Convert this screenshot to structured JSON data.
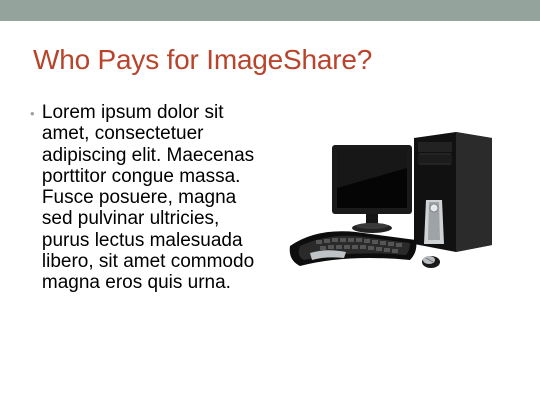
{
  "slide": {
    "title": "Who Pays for ImageShare?",
    "bullets": [
      "Lorem ipsum dolor sit amet, consectetuer adipiscing elit. Maecenas porttitor congue massa. Fusce posuere, magna sed pulvinar ultricies, purus lectus malesuada libero, sit amet commodo magna eros quis urna."
    ],
    "image": {
      "subject": "desktop-computer"
    }
  },
  "colors": {
    "top_bar": "#94a39b",
    "title": "#b8442c",
    "bullet": "#9aa39d",
    "text": "#000000",
    "background": "#ffffff"
  }
}
